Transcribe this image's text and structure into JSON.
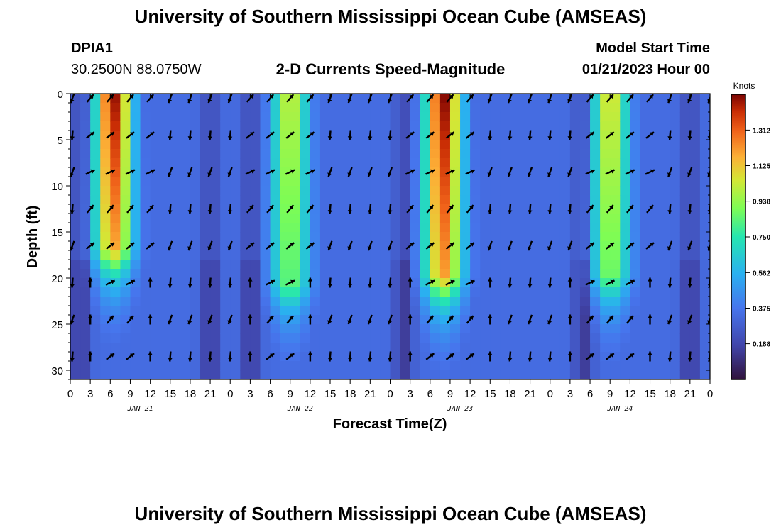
{
  "header": {
    "title": "University of Southern Mississippi Ocean Cube (AMSEAS)",
    "station": "DPIA1",
    "coords": "30.2500N  88.0750W",
    "subtitle": "2-D Currents Speed-Magnitude",
    "model_label": "Model Start Time",
    "model_time": "01/21/2023 Hour 00"
  },
  "footer": {
    "title": "University of Southern Mississippi Ocean Cube (AMSEAS)"
  },
  "colors": {
    "arrow": "#000000",
    "frame": "#000000"
  },
  "chart_data": {
    "type": "heatmap",
    "title": "2-D Currents Speed-Magnitude",
    "xlabel": "Forecast Time(Z)",
    "ylabel": "Depth (ft)",
    "x_range_hours": [
      0,
      96
    ],
    "ylim": [
      0,
      31
    ],
    "y_inverted": true,
    "x_ticks": [
      "0",
      "3",
      "6",
      "9",
      "12",
      "15",
      "18",
      "21",
      "0",
      "3",
      "6",
      "9",
      "12",
      "15",
      "18",
      "21",
      "0",
      "3",
      "6",
      "9",
      "12",
      "15",
      "18",
      "21",
      "0",
      "3",
      "6",
      "9",
      "12",
      "15",
      "18",
      "21",
      "0"
    ],
    "x_tick_hours": [
      0,
      3,
      6,
      9,
      12,
      15,
      18,
      21,
      24,
      27,
      30,
      33,
      36,
      39,
      42,
      45,
      48,
      51,
      54,
      57,
      60,
      63,
      66,
      69,
      72,
      75,
      78,
      81,
      84,
      87,
      90,
      93,
      96
    ],
    "y_ticks": [
      0,
      5,
      10,
      15,
      20,
      25,
      30
    ],
    "date_labels": [
      {
        "text": "JAN 21",
        "hour": 10.5
      },
      {
        "text": "JAN 22",
        "hour": 34.5
      },
      {
        "text": "JAN 23",
        "hour": 58.5
      },
      {
        "text": "JAN 24",
        "hour": 82.5
      }
    ],
    "colorbar": {
      "unit": "Knots",
      "min": 0.0,
      "max": 1.5,
      "ticks": [
        "1.312",
        "1.125",
        "0.938",
        "0.750",
        "0.562",
        "0.375",
        "0.188"
      ]
    },
    "arrow_depths_ft": [
      0.5,
      4.5,
      8.5,
      12.5,
      16.5,
      20.5,
      24.5,
      28.5
    ],
    "arrow_hours": [
      0,
      3,
      6,
      9,
      12,
      15,
      18,
      21,
      24,
      27,
      30,
      33,
      36,
      39,
      42,
      45,
      48,
      51,
      54,
      57,
      60,
      63,
      66,
      69,
      72,
      75,
      78,
      81,
      84,
      87,
      90,
      93,
      96
    ],
    "flood_direction_deg": 40,
    "ebb_direction_deg": 200,
    "speed_peaks": [
      {
        "hour": 6.5,
        "knots": 1.48,
        "depth_to_ft": 17
      },
      {
        "hour": 33,
        "knots": 1.05,
        "depth_to_ft": 21
      },
      {
        "hour": 56,
        "knots": 1.5,
        "depth_to_ft": 20
      },
      {
        "hour": 81,
        "knots": 1.1,
        "depth_to_ft": 20
      }
    ]
  }
}
